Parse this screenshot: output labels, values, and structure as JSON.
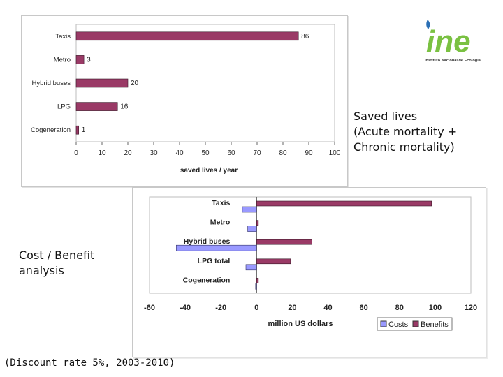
{
  "captions": {
    "saved_lives": [
      "Saved lives",
      "(Acute mortality +",
      "Chronic mortality)"
    ],
    "cost_benefit": [
      "Cost / Benefit",
      "analysis"
    ],
    "note": "(Discount rate 5%, 2003-2010)"
  },
  "logo": {
    "wordmark": "ine",
    "subtitle": "Instituto Nacional de Ecología"
  },
  "colors": {
    "benefits": "#9a3a66",
    "costs": "#9999ff",
    "grid": "#d0d0d0",
    "logo_green": "#7ac142",
    "logo_blue": "#2a6fb5"
  },
  "chart_data": [
    {
      "type": "bar",
      "orientation": "horizontal",
      "categories": [
        "Taxis",
        "Metro",
        "Hybrid buses",
        "LPG",
        "Cogeneration"
      ],
      "series": [
        {
          "values": [
            86,
            3,
            20,
            16,
            1
          ]
        }
      ],
      "xlabel": "saved lives / year",
      "ylabel": "",
      "xlim": [
        0,
        100
      ],
      "xticks": [
        0,
        10,
        20,
        30,
        40,
        50,
        60,
        70,
        80,
        90,
        100
      ],
      "data_labels": true,
      "grid": false,
      "legend": "none"
    },
    {
      "type": "bar",
      "orientation": "horizontal",
      "categories": [
        "Taxis",
        "Metro",
        "Hybrid buses",
        "LPG total",
        "Cogeneration"
      ],
      "series": [
        {
          "name": "Costs",
          "values": [
            -8,
            -5,
            -45,
            -6,
            -0.5
          ]
        },
        {
          "name": "Benefits",
          "values": [
            98,
            1,
            31,
            19,
            1
          ]
        }
      ],
      "xlabel": "million US dollars",
      "ylabel": "",
      "xlim": [
        -60,
        120
      ],
      "xticks": [
        -60,
        -40,
        -20,
        0,
        20,
        40,
        60,
        80,
        100,
        120
      ],
      "grid": false,
      "legend": "bottom-right"
    }
  ]
}
